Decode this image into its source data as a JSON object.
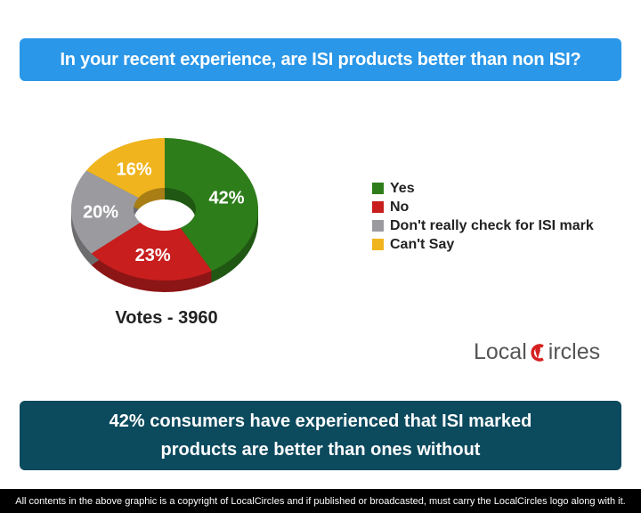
{
  "question": "In your recent experience, are ISI products better than non ISI?",
  "chart_data": {
    "type": "pie",
    "donut": true,
    "categories": [
      "Yes",
      "No",
      "Don't really check for ISI mark",
      "Can't Say"
    ],
    "values": [
      42,
      23,
      20,
      16
    ],
    "labels": [
      "42%",
      "23%",
      "20%",
      "16%"
    ],
    "colors": [
      "#2e7d1b",
      "#c81e1e",
      "#9b9b9f",
      "#f0b41e"
    ],
    "legend_position": "right"
  },
  "votes": "Votes - 3960",
  "logo": {
    "text_before": "Local",
    "text_after": "ircles"
  },
  "conclusion": "42% consumers have experienced that ISI marked products are better than ones without",
  "footer": "All contents in the above graphic is a copyright of LocalCircles and if published or broadcasted, must carry the LocalCircles logo along with it."
}
